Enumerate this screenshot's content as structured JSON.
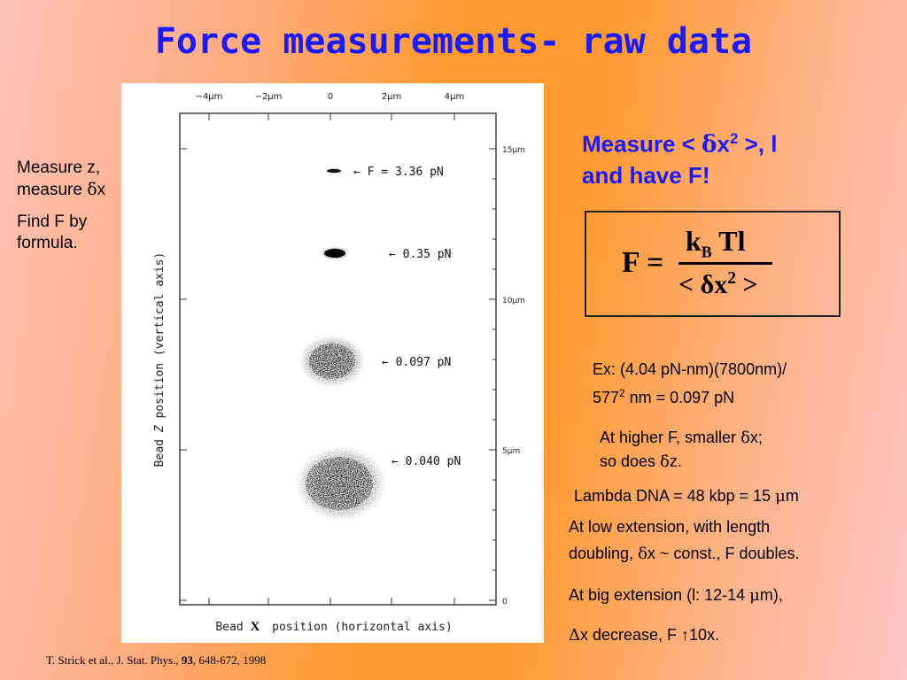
{
  "slide": {
    "title": "Force measurements- raw data",
    "left_notes": {
      "line1": "Measure z,",
      "line2_prefix": "measure ",
      "line2_symbol": "δ",
      "line2_suffix": "x",
      "find_line1": "Find F by",
      "find_line2": "formula."
    },
    "measure_head": {
      "line1_prefix": "Measure < ",
      "line1_symbol": "δ",
      "line1_var": "x",
      "line1_sup": "2",
      "line1_suffix": " >, l",
      "line2": "and have F!"
    },
    "formula": {
      "lhs": "F =",
      "numerator_k": "k",
      "numerator_sub": "B",
      "numerator_rest": " Tl",
      "denominator_open": "< ",
      "denominator_symbol": "δ",
      "denominator_var": "x",
      "denominator_sup": "2",
      "denominator_close": " >"
    },
    "example": {
      "line1": "Ex: (4.04 pN-nm)(7800nm)/",
      "line2_num": "577",
      "line2_sup": "2",
      "line2_rest": " nm = 0.097 pN"
    },
    "higher_f": {
      "line1_prefix": "At higher F, smaller ",
      "line1_symbol": "δ",
      "line1_suffix": "x;",
      "line2_prefix": "so does ",
      "line2_symbol": "δ",
      "line2_suffix": "z."
    },
    "lambda_dna": {
      "prefix": "Lambda DNA = 48 kbp = 15 ",
      "symbol": "μ",
      "suffix": "m"
    },
    "low_extension": {
      "line1": "At low extension, with length",
      "line2_prefix": "doubling, ",
      "line2_symbol": "δ",
      "line2_suffix": "x ~ const., F doubles."
    },
    "big_extension": {
      "prefix": "At big extension (l: 12-14 ",
      "symbol": "μ",
      "suffix": "m),"
    },
    "delta_line": {
      "symbol": "Δ",
      "text": "x decrease, F ",
      "arrow": "↑",
      "suffix": "10x."
    },
    "citation": {
      "prefix": "T. Strick et al., J. Stat. Phys., ",
      "volume": "93",
      "suffix": ", 648-672, 1998"
    }
  },
  "figure": {
    "top_ticks": [
      "−4μm",
      "−2μm",
      "0",
      "2μm",
      "4μm"
    ],
    "right_ticks": [
      "15μm",
      "10μm",
      "5μm",
      "0"
    ],
    "y_axis_label_prefix": "Bead ",
    "y_axis_label_var": "Z",
    "y_axis_label_suffix": " position (vertical axis)",
    "x_axis_label_prefix": "Bead ",
    "x_axis_label_var": "X",
    "x_axis_label_suffix": " position (horizontal axis)",
    "clouds": [
      {
        "label": "← F = 3.36 pN",
        "force_pN": 3.36
      },
      {
        "label": "← 0.35 pN",
        "force_pN": 0.35
      },
      {
        "label": "← 0.097 pN",
        "force_pN": 0.097
      },
      {
        "label": "← 0.040 pN",
        "force_pN": 0.04
      }
    ]
  },
  "colors": {
    "title": "#1a1aff",
    "accent_text": "#1a1aff",
    "body_text": "#000000"
  }
}
